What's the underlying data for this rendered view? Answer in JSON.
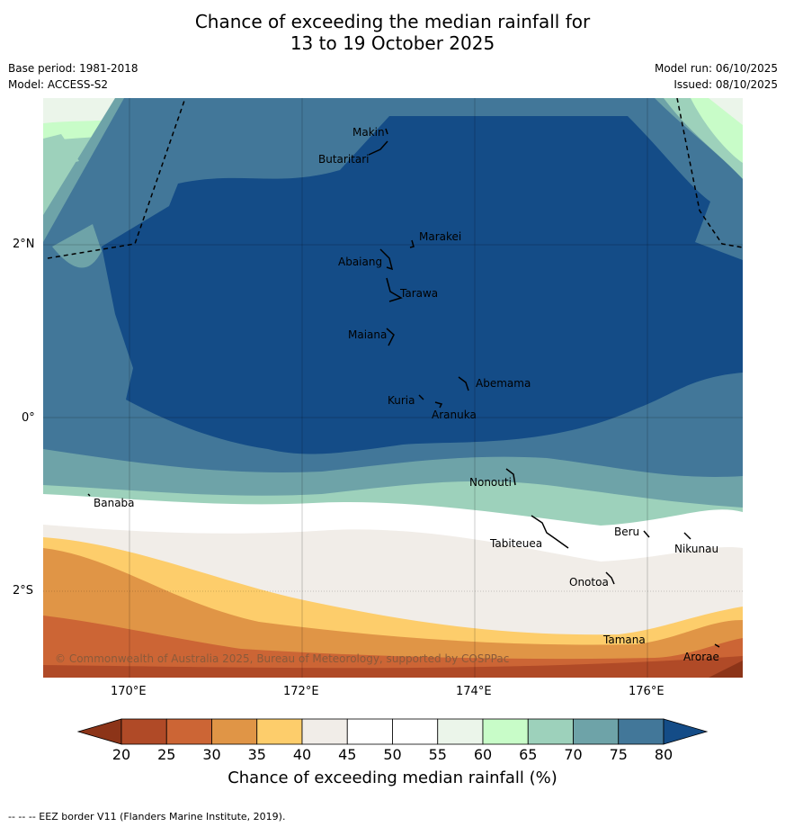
{
  "title": {
    "line1": "Chance of exceeding the median rainfall for",
    "line2": "13 to 19 October 2025"
  },
  "meta": {
    "base_period": "Base period: 1981-2018",
    "model": "Model: ACCESS-S2",
    "model_run": "Model run: 06/10/2025",
    "issued": "Issued: 08/10/2025"
  },
  "map": {
    "lat_labels": [
      "2°N",
      "0°",
      "2°S"
    ],
    "lon_labels": [
      "170°E",
      "172°E",
      "174°E",
      "176°E"
    ],
    "places": [
      {
        "name": "Makin"
      },
      {
        "name": "Butaritari"
      },
      {
        "name": "Marakei"
      },
      {
        "name": "Abaiang"
      },
      {
        "name": "Tarawa"
      },
      {
        "name": "Maiana"
      },
      {
        "name": "Abemama"
      },
      {
        "name": "Kuria"
      },
      {
        "name": "Aranuka"
      },
      {
        "name": "Nonouti"
      },
      {
        "name": "Banaba"
      },
      {
        "name": "Tabiteuea"
      },
      {
        "name": "Beru"
      },
      {
        "name": "Nikunau"
      },
      {
        "name": "Onotoa"
      },
      {
        "name": "Tamana"
      },
      {
        "name": "Arorae"
      }
    ],
    "copyright": "© Commonwealth of Australia 2025, Bureau of Meteorology, supported by COSPPac"
  },
  "colorbar": {
    "ticks": [
      "20",
      "25",
      "30",
      "35",
      "40",
      "45",
      "50",
      "55",
      "60",
      "65",
      "70",
      "75",
      "80"
    ],
    "colors": {
      "lt20": "#8c3418",
      "b20_25": "#b04a27",
      "b25_30": "#cc6535",
      "b30_35": "#e09546",
      "b35_40": "#fdcd6b",
      "b40_45": "#f1ede8",
      "b45_50": "#ffffff",
      "b50_55": "#ffffff",
      "b55_60": "#ebf5ea",
      "b60_65": "#c8fcc8",
      "b65_70": "#9dd1bb",
      "b70_75": "#6ea3a8",
      "b75_80": "#427799",
      "gt80": "#144c87"
    },
    "title": "Chance of exceeding median rainfall (%)"
  },
  "footnote": "--  --  -- EEZ border V11 (Flanders Marine Institute, 2019)."
}
